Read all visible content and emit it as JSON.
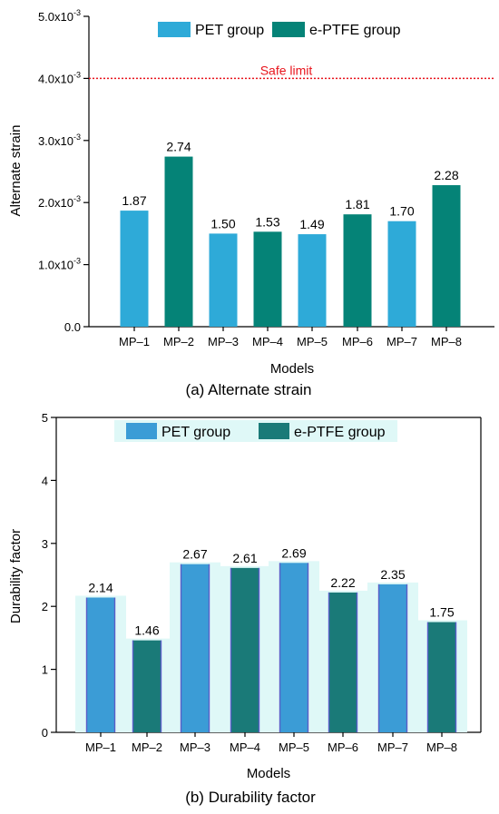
{
  "chart_data": [
    {
      "type": "bar",
      "caption": "(a) Alternate strain",
      "xlabel": "Models",
      "ylabel": "Alternate strain",
      "categories": [
        "MP–1",
        "MP–2",
        "MP–3",
        "MP–4",
        "MP–5",
        "MP–6",
        "MP–7",
        "MP–8"
      ],
      "values": [
        1.87,
        2.74,
        1.5,
        1.53,
        1.49,
        1.81,
        1.7,
        2.28
      ],
      "value_labels": [
        "1.87",
        "2.74",
        "1.50",
        "1.53",
        "1.49",
        "1.81",
        "1.70",
        "2.28"
      ],
      "groups": [
        "PET",
        "ePTFE",
        "PET",
        "ePTFE",
        "PET",
        "ePTFE",
        "PET",
        "ePTFE"
      ],
      "value_multiplier": "x10^-3",
      "ylim": [
        0,
        5.0
      ],
      "yticks": [
        {
          "value": 0,
          "label": "0.0",
          "exp": ""
        },
        {
          "value": 1,
          "label": "1.0x10",
          "exp": "-3"
        },
        {
          "value": 2,
          "label": "2.0x10",
          "exp": "-3"
        },
        {
          "value": 3,
          "label": "3.0x10",
          "exp": "-3"
        },
        {
          "value": 4,
          "label": "4.0x10",
          "exp": "-3"
        },
        {
          "value": 5,
          "label": "5.0x10",
          "exp": "-3"
        }
      ],
      "reference_line": {
        "value": 4.0,
        "label": "Safe limit",
        "color": "#e8141c"
      },
      "legend": [
        {
          "key": "PET",
          "label": "PET group",
          "color": "#2eaad8"
        },
        {
          "key": "ePTFE",
          "label": "e-PTFE group",
          "color": "#058377"
        }
      ],
      "legend_position": "top-center",
      "grid": false
    },
    {
      "type": "bar",
      "caption": "(b) Durability factor",
      "xlabel": "Models",
      "ylabel": "Durability factor",
      "categories": [
        "MP–1",
        "MP–2",
        "MP–3",
        "MP–4",
        "MP–5",
        "MP–6",
        "MP–7",
        "MP–8"
      ],
      "values": [
        2.14,
        1.46,
        2.67,
        2.61,
        2.69,
        2.22,
        2.35,
        1.75
      ],
      "value_labels": [
        "2.14",
        "1.46",
        "2.67",
        "2.61",
        "2.69",
        "2.22",
        "2.35",
        "1.75"
      ],
      "groups": [
        "PET",
        "ePTFE",
        "PET",
        "ePTFE",
        "PET",
        "ePTFE",
        "PET",
        "ePTFE"
      ],
      "ylim": [
        0,
        5
      ],
      "yticks": [
        {
          "value": 0,
          "label": "0",
          "exp": ""
        },
        {
          "value": 1,
          "label": "1",
          "exp": ""
        },
        {
          "value": 2,
          "label": "2",
          "exp": ""
        },
        {
          "value": 3,
          "label": "3",
          "exp": ""
        },
        {
          "value": 4,
          "label": "4",
          "exp": ""
        },
        {
          "value": 5,
          "label": "5",
          "exp": ""
        }
      ],
      "legend": [
        {
          "key": "PET",
          "label": "PET group",
          "color": "#3b9cd6"
        },
        {
          "key": "ePTFE",
          "label": "e-PTFE group",
          "color": "#1a7a78"
        }
      ],
      "bar_glow_color": "#dff8f7",
      "legend_position": "top-center",
      "grid": false
    }
  ]
}
